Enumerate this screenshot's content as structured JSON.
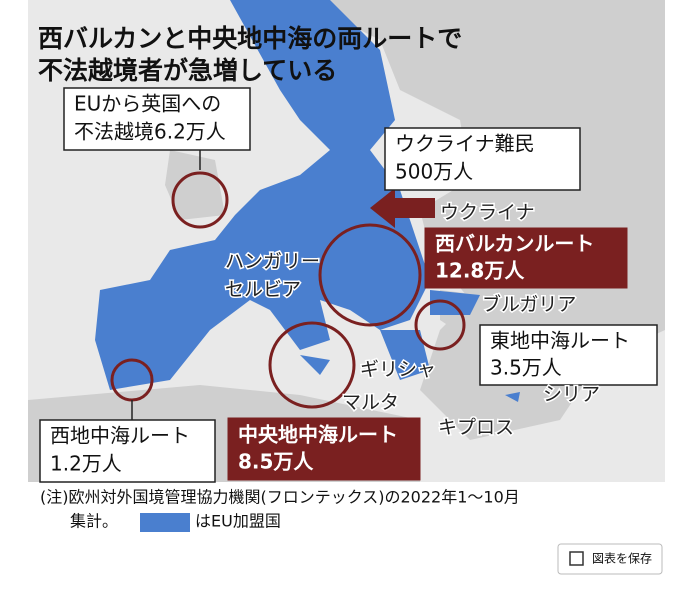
{
  "title": {
    "lines": [
      "西バルカンと中央地中海の両ルートで",
      "不法越境者が急増している"
    ]
  },
  "callouts": {
    "uk": {
      "lines": [
        "EUから英国への",
        "不法越境6.2万人"
      ]
    },
    "ukraine": {
      "lines": [
        "ウクライナ難民",
        "500万人"
      ]
    },
    "west_balkan": {
      "lines": [
        "西バルカンルート",
        "12.8万人"
      ]
    },
    "east_med": {
      "lines": [
        "東地中海ルート",
        "3.5万人"
      ]
    },
    "central_med": {
      "lines": [
        "中央地中海ルート",
        "8.5万人"
      ]
    },
    "west_med": {
      "lines": [
        "西地中海ルート",
        "1.2万人"
      ]
    }
  },
  "places": {
    "ukraine": "ウクライナ",
    "hungary": "ハンガリー",
    "serbia": "セルビア",
    "bulgaria": "ブルガリア",
    "greece": "ギリシャ",
    "malta": "マルタ",
    "cyprus": "キプロス",
    "syria": "シリア"
  },
  "note": {
    "lines": [
      "(注)欧州対外国境管理協力機関(フロンテックス)の2022年1～10月",
      "集計。"
    ],
    "legend": "はEU加盟国"
  },
  "button": "図表を保存"
}
